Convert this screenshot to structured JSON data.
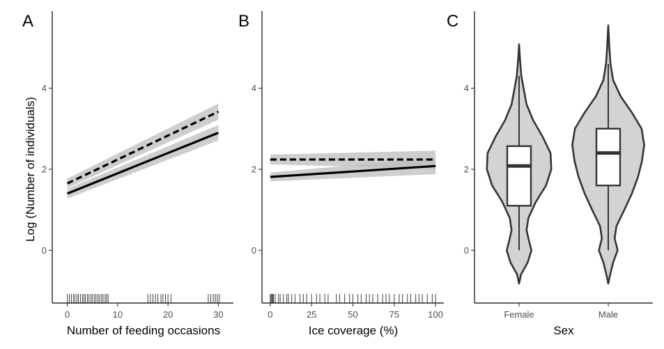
{
  "ylabel": "Log (Number of individuals)",
  "chart_data": [
    {
      "type": "line",
      "panel_label": "A",
      "xlabel": "Number of feeding occasions",
      "ylabel": "Log (Number of individuals)",
      "xlim": [
        -3,
        33
      ],
      "ylim": [
        -1.3,
        5.9
      ],
      "xticks": [
        "0",
        "10",
        "20",
        "30"
      ],
      "xtick_values": [
        0,
        10,
        20,
        30
      ],
      "yticks": [
        "0",
        "2",
        "4"
      ],
      "ytick_values": [
        0,
        2,
        4
      ],
      "series": [
        {
          "style": "dashed",
          "x": [
            0,
            30
          ],
          "y": [
            1.65,
            3.42
          ],
          "ci_lower": [
            1.54,
            3.22
          ],
          "ci_upper": [
            1.77,
            3.62
          ]
        },
        {
          "style": "solid",
          "x": [
            0,
            30
          ],
          "y": [
            1.4,
            2.9
          ],
          "ci_lower": [
            1.28,
            2.71
          ],
          "ci_upper": [
            1.52,
            3.09
          ]
        }
      ],
      "rug_x": [
        0,
        0.4,
        0.8,
        1.2,
        1.5,
        1.9,
        2.2,
        2.6,
        3.0,
        3.3,
        3.6,
        4.0,
        4.3,
        4.7,
        5.0,
        5.4,
        5.7,
        6.1,
        6.4,
        6.8,
        7.1,
        7.5,
        7.8,
        8.1,
        16.0,
        16.5,
        17.0,
        17.5,
        18.0,
        18.6,
        19.0,
        19.5,
        20.0,
        20.6,
        28.0,
        28.5,
        29.0,
        29.4,
        29.8,
        30.2
      ],
      "grid": false
    },
    {
      "type": "line",
      "panel_label": "B",
      "xlabel": "Ice coverage (%)",
      "xlim": [
        -5,
        105
      ],
      "ylim": [
        -1.3,
        5.9
      ],
      "xticks": [
        "0",
        "25",
        "50",
        "75",
        "100"
      ],
      "xtick_values": [
        0,
        25,
        50,
        75,
        100
      ],
      "yticks": [
        "0",
        "2",
        "4"
      ],
      "ytick_values": [
        0,
        2,
        4
      ],
      "series": [
        {
          "style": "dashed",
          "x": [
            0,
            100
          ],
          "y": [
            2.24,
            2.24
          ],
          "ci_lower": [
            2.12,
            2.02
          ],
          "ci_upper": [
            2.36,
            2.46
          ]
        },
        {
          "style": "solid",
          "x": [
            0,
            100
          ],
          "y": [
            1.81,
            2.08
          ],
          "ci_lower": [
            1.7,
            1.88
          ],
          "ci_upper": [
            1.92,
            2.28
          ]
        }
      ],
      "rug_x": [
        0,
        0.5,
        1,
        1.5,
        2,
        3,
        5,
        6,
        8,
        10,
        11,
        13,
        15,
        18,
        20,
        22,
        25,
        28,
        30,
        33,
        35,
        40,
        42,
        45,
        48,
        50,
        53,
        55,
        58,
        60,
        62,
        65,
        68,
        70,
        72,
        75,
        78,
        80,
        83,
        85,
        88,
        90,
        92,
        95,
        98,
        100
      ],
      "grid": false
    },
    {
      "type": "violin",
      "panel_label": "C",
      "xlabel": "Sex",
      "categories": [
        "Female",
        "Male"
      ],
      "ylim": [
        -1.3,
        5.9
      ],
      "yticks": [
        "0",
        "2",
        "4"
      ],
      "ytick_values": [
        0,
        2,
        4
      ],
      "boxes": [
        {
          "category": "Female",
          "min": 0.0,
          "q1": 1.1,
          "median": 2.08,
          "q3": 2.57,
          "max": 4.3
        },
        {
          "category": "Male",
          "min": 0.0,
          "q1": 1.6,
          "median": 2.4,
          "q3": 3.0,
          "max": 4.6
        }
      ],
      "violins": [
        {
          "category": "Female",
          "y_min": -0.82,
          "y_max": 5.08,
          "profile": [
            [
              -0.82,
              0.0
            ],
            [
              -0.6,
              0.05
            ],
            [
              -0.3,
              0.23
            ],
            [
              0.0,
              0.33
            ],
            [
              0.25,
              0.26
            ],
            [
              0.5,
              0.2
            ],
            [
              0.8,
              0.25
            ],
            [
              1.2,
              0.45
            ],
            [
              1.6,
              0.72
            ],
            [
              2.0,
              0.86
            ],
            [
              2.4,
              0.84
            ],
            [
              2.8,
              0.63
            ],
            [
              3.2,
              0.38
            ],
            [
              3.6,
              0.2
            ],
            [
              4.0,
              0.12
            ],
            [
              4.3,
              0.06
            ],
            [
              4.7,
              0.025
            ],
            [
              5.08,
              0.0
            ]
          ]
        },
        {
          "category": "Male",
          "y_min": -0.82,
          "y_max": 5.55,
          "profile": [
            [
              -0.82,
              0.0
            ],
            [
              -0.6,
              0.05
            ],
            [
              -0.3,
              0.13
            ],
            [
              0.0,
              0.25
            ],
            [
              0.3,
              0.17
            ],
            [
              0.6,
              0.22
            ],
            [
              1.0,
              0.43
            ],
            [
              1.4,
              0.63
            ],
            [
              1.8,
              0.79
            ],
            [
              2.2,
              0.9
            ],
            [
              2.6,
              0.96
            ],
            [
              3.0,
              0.89
            ],
            [
              3.4,
              0.63
            ],
            [
              3.8,
              0.33
            ],
            [
              4.2,
              0.13
            ],
            [
              4.6,
              0.06
            ],
            [
              5.0,
              0.03
            ],
            [
              5.55,
              0.0
            ]
          ]
        }
      ],
      "grid": false
    }
  ]
}
